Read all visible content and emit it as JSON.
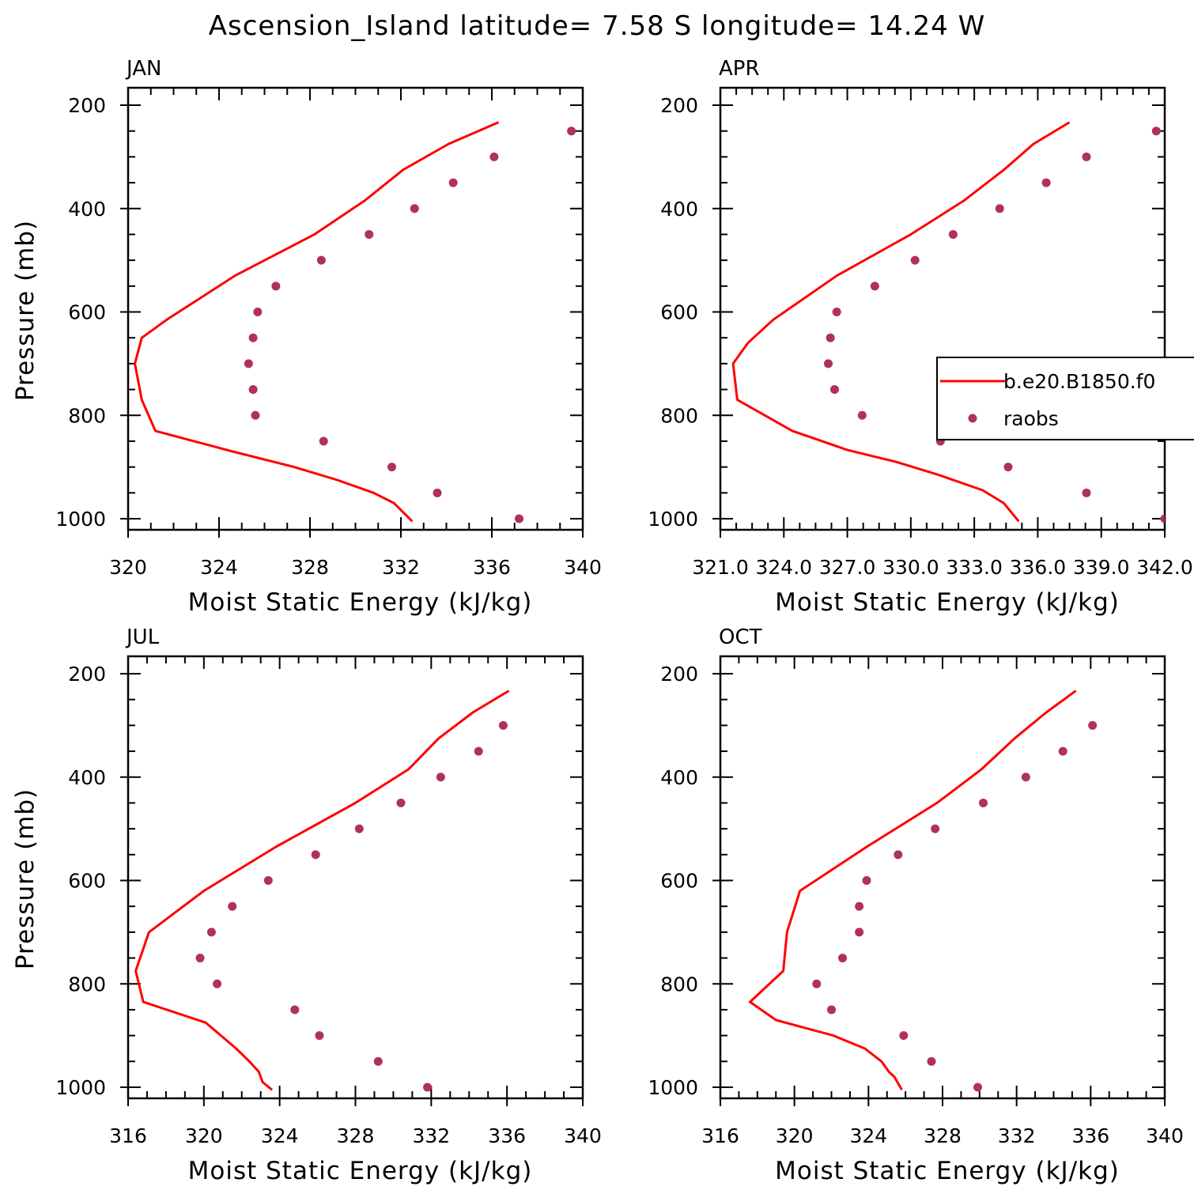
{
  "figure": {
    "title": "Ascension_Island  latitude= 7.58 S longitude= 14.24 W"
  },
  "colors": {
    "model_line": "#ff0000",
    "raobs_marker": "#b03060",
    "axes": "#000000",
    "background": "#ffffff"
  },
  "legend": {
    "panel": 1,
    "placement": "right, overflowing panel edge",
    "entries": [
      {
        "label": "b.e20.B1850.f0",
        "kind": "line",
        "color": "#ff0000"
      },
      {
        "label": "raobs",
        "kind": "marker",
        "color": "#b03060"
      }
    ]
  },
  "chart_data": [
    {
      "type": "line",
      "panel_label": "JAN",
      "xlabel": "Moist Static Energy (kJ/kg)",
      "ylabel": "Pressure (mb)",
      "xlim": [
        320,
        340
      ],
      "ylim": [
        1000,
        200
      ],
      "y_reversed": true,
      "xticks": [
        "320",
        "324",
        "328",
        "332",
        "336",
        "340"
      ],
      "yticks": [
        "200",
        "400",
        "600",
        "800",
        "1000"
      ],
      "series": [
        {
          "name": "b.e20.B1850.f0",
          "style": "line",
          "x": [
            332.5,
            331.7,
            330.8,
            329.2,
            327.3,
            324.6,
            321.2,
            320.6,
            320.3,
            320.6,
            321.7,
            324.7,
            328.2,
            330.4,
            332.1,
            334.1,
            336.3
          ],
          "y": [
            1005,
            970,
            950,
            925,
            900,
            870,
            830,
            770,
            700,
            650,
            615,
            530,
            450,
            385,
            325,
            275,
            233
          ]
        },
        {
          "name": "raobs",
          "style": "markers",
          "x": [
            337.2,
            333.6,
            331.6,
            328.6,
            325.6,
            325.5,
            325.3,
            325.5,
            325.7,
            326.5,
            328.5,
            330.6,
            332.6,
            334.3,
            336.1,
            339.5
          ],
          "y": [
            1000,
            950,
            900,
            850,
            800,
            750,
            700,
            650,
            600,
            550,
            500,
            450,
            400,
            350,
            300,
            250
          ]
        }
      ]
    },
    {
      "type": "line",
      "panel_label": "APR",
      "xlabel": "Moist Static Energy (kJ/kg)",
      "ylabel": "",
      "xlim": [
        321.0,
        342.0
      ],
      "ylim": [
        1000,
        200
      ],
      "y_reversed": true,
      "xticks": [
        "321.0",
        "324.0",
        "327.0",
        "330.0",
        "333.0",
        "336.0",
        "339.0",
        "342.0"
      ],
      "yticks": [
        "200",
        "400",
        "600",
        "800",
        "1000"
      ],
      "series": [
        {
          "name": "b.e20.B1850.f0",
          "style": "line",
          "x": [
            335.1,
            334.4,
            333.4,
            331.3,
            329.3,
            327.0,
            324.4,
            321.8,
            321.6,
            322.3,
            323.5,
            326.5,
            330.0,
            332.5,
            334.4,
            335.8,
            337.5
          ],
          "y": [
            1005,
            970,
            945,
            915,
            890,
            867,
            830,
            770,
            700,
            660,
            615,
            530,
            450,
            385,
            325,
            275,
            233
          ]
        },
        {
          "name": "raobs",
          "style": "markers",
          "x": [
            342.0,
            338.3,
            334.6,
            331.4,
            327.7,
            326.4,
            326.1,
            326.2,
            326.5,
            328.3,
            330.2,
            332.0,
            334.2,
            336.4,
            338.3,
            341.6
          ],
          "y": [
            1000,
            950,
            900,
            850,
            800,
            750,
            700,
            650,
            600,
            550,
            500,
            450,
            400,
            350,
            300,
            250
          ]
        }
      ]
    },
    {
      "type": "line",
      "panel_label": "JUL",
      "xlabel": "Moist Static Energy (kJ/kg)",
      "ylabel": "Pressure (mb)",
      "xlim": [
        316,
        340
      ],
      "ylim": [
        1000,
        200
      ],
      "y_reversed": true,
      "xticks": [
        "316",
        "320",
        "324",
        "328",
        "332",
        "336",
        "340"
      ],
      "yticks": [
        "200",
        "400",
        "600",
        "800",
        "1000"
      ],
      "series": [
        {
          "name": "b.e20.B1850.f0",
          "style": "line",
          "x": [
            323.6,
            323.1,
            322.9,
            322.4,
            321.7,
            320.9,
            320.1,
            316.8,
            316.4,
            317.1,
            320.0,
            323.8,
            328.0,
            330.8,
            332.4,
            334.2,
            336.1
          ],
          "y": [
            1005,
            990,
            970,
            950,
            925,
            900,
            875,
            835,
            775,
            700,
            620,
            535,
            450,
            385,
            325,
            275,
            233
          ]
        },
        {
          "name": "raobs",
          "style": "markers",
          "x": [
            331.8,
            329.2,
            326.1,
            324.8,
            320.7,
            319.8,
            320.4,
            321.5,
            323.4,
            325.9,
            328.2,
            330.4,
            332.5,
            334.5,
            335.8
          ],
          "y": [
            1000,
            950,
            900,
            850,
            800,
            750,
            700,
            650,
            600,
            550,
            500,
            450,
            400,
            350,
            300
          ]
        }
      ]
    },
    {
      "type": "line",
      "panel_label": "OCT",
      "xlabel": "Moist Static Energy (kJ/kg)",
      "ylabel": "",
      "xlim": [
        316,
        340
      ],
      "ylim": [
        1000,
        200
      ],
      "y_reversed": true,
      "xticks": [
        "316",
        "320",
        "324",
        "328",
        "332",
        "336",
        "340"
      ],
      "yticks": [
        "200",
        "400",
        "600",
        "800",
        "1000"
      ],
      "series": [
        {
          "name": "b.e20.B1850.f0",
          "style": "line",
          "x": [
            325.8,
            325.4,
            325.1,
            324.7,
            323.8,
            322.1,
            319.0,
            317.6,
            319.4,
            319.6,
            320.3,
            323.9,
            327.7,
            330.1,
            331.9,
            333.6,
            335.2
          ],
          "y": [
            1005,
            980,
            970,
            950,
            925,
            900,
            870,
            835,
            775,
            700,
            620,
            535,
            450,
            385,
            325,
            275,
            233
          ]
        },
        {
          "name": "raobs",
          "style": "markers",
          "x": [
            329.9,
            327.4,
            325.9,
            322.0,
            321.2,
            322.6,
            323.5,
            323.5,
            323.9,
            325.6,
            327.6,
            330.2,
            332.5,
            334.5,
            336.1
          ],
          "y": [
            1000,
            950,
            900,
            850,
            800,
            750,
            700,
            650,
            600,
            550,
            500,
            450,
            400,
            350,
            300
          ]
        }
      ]
    }
  ]
}
